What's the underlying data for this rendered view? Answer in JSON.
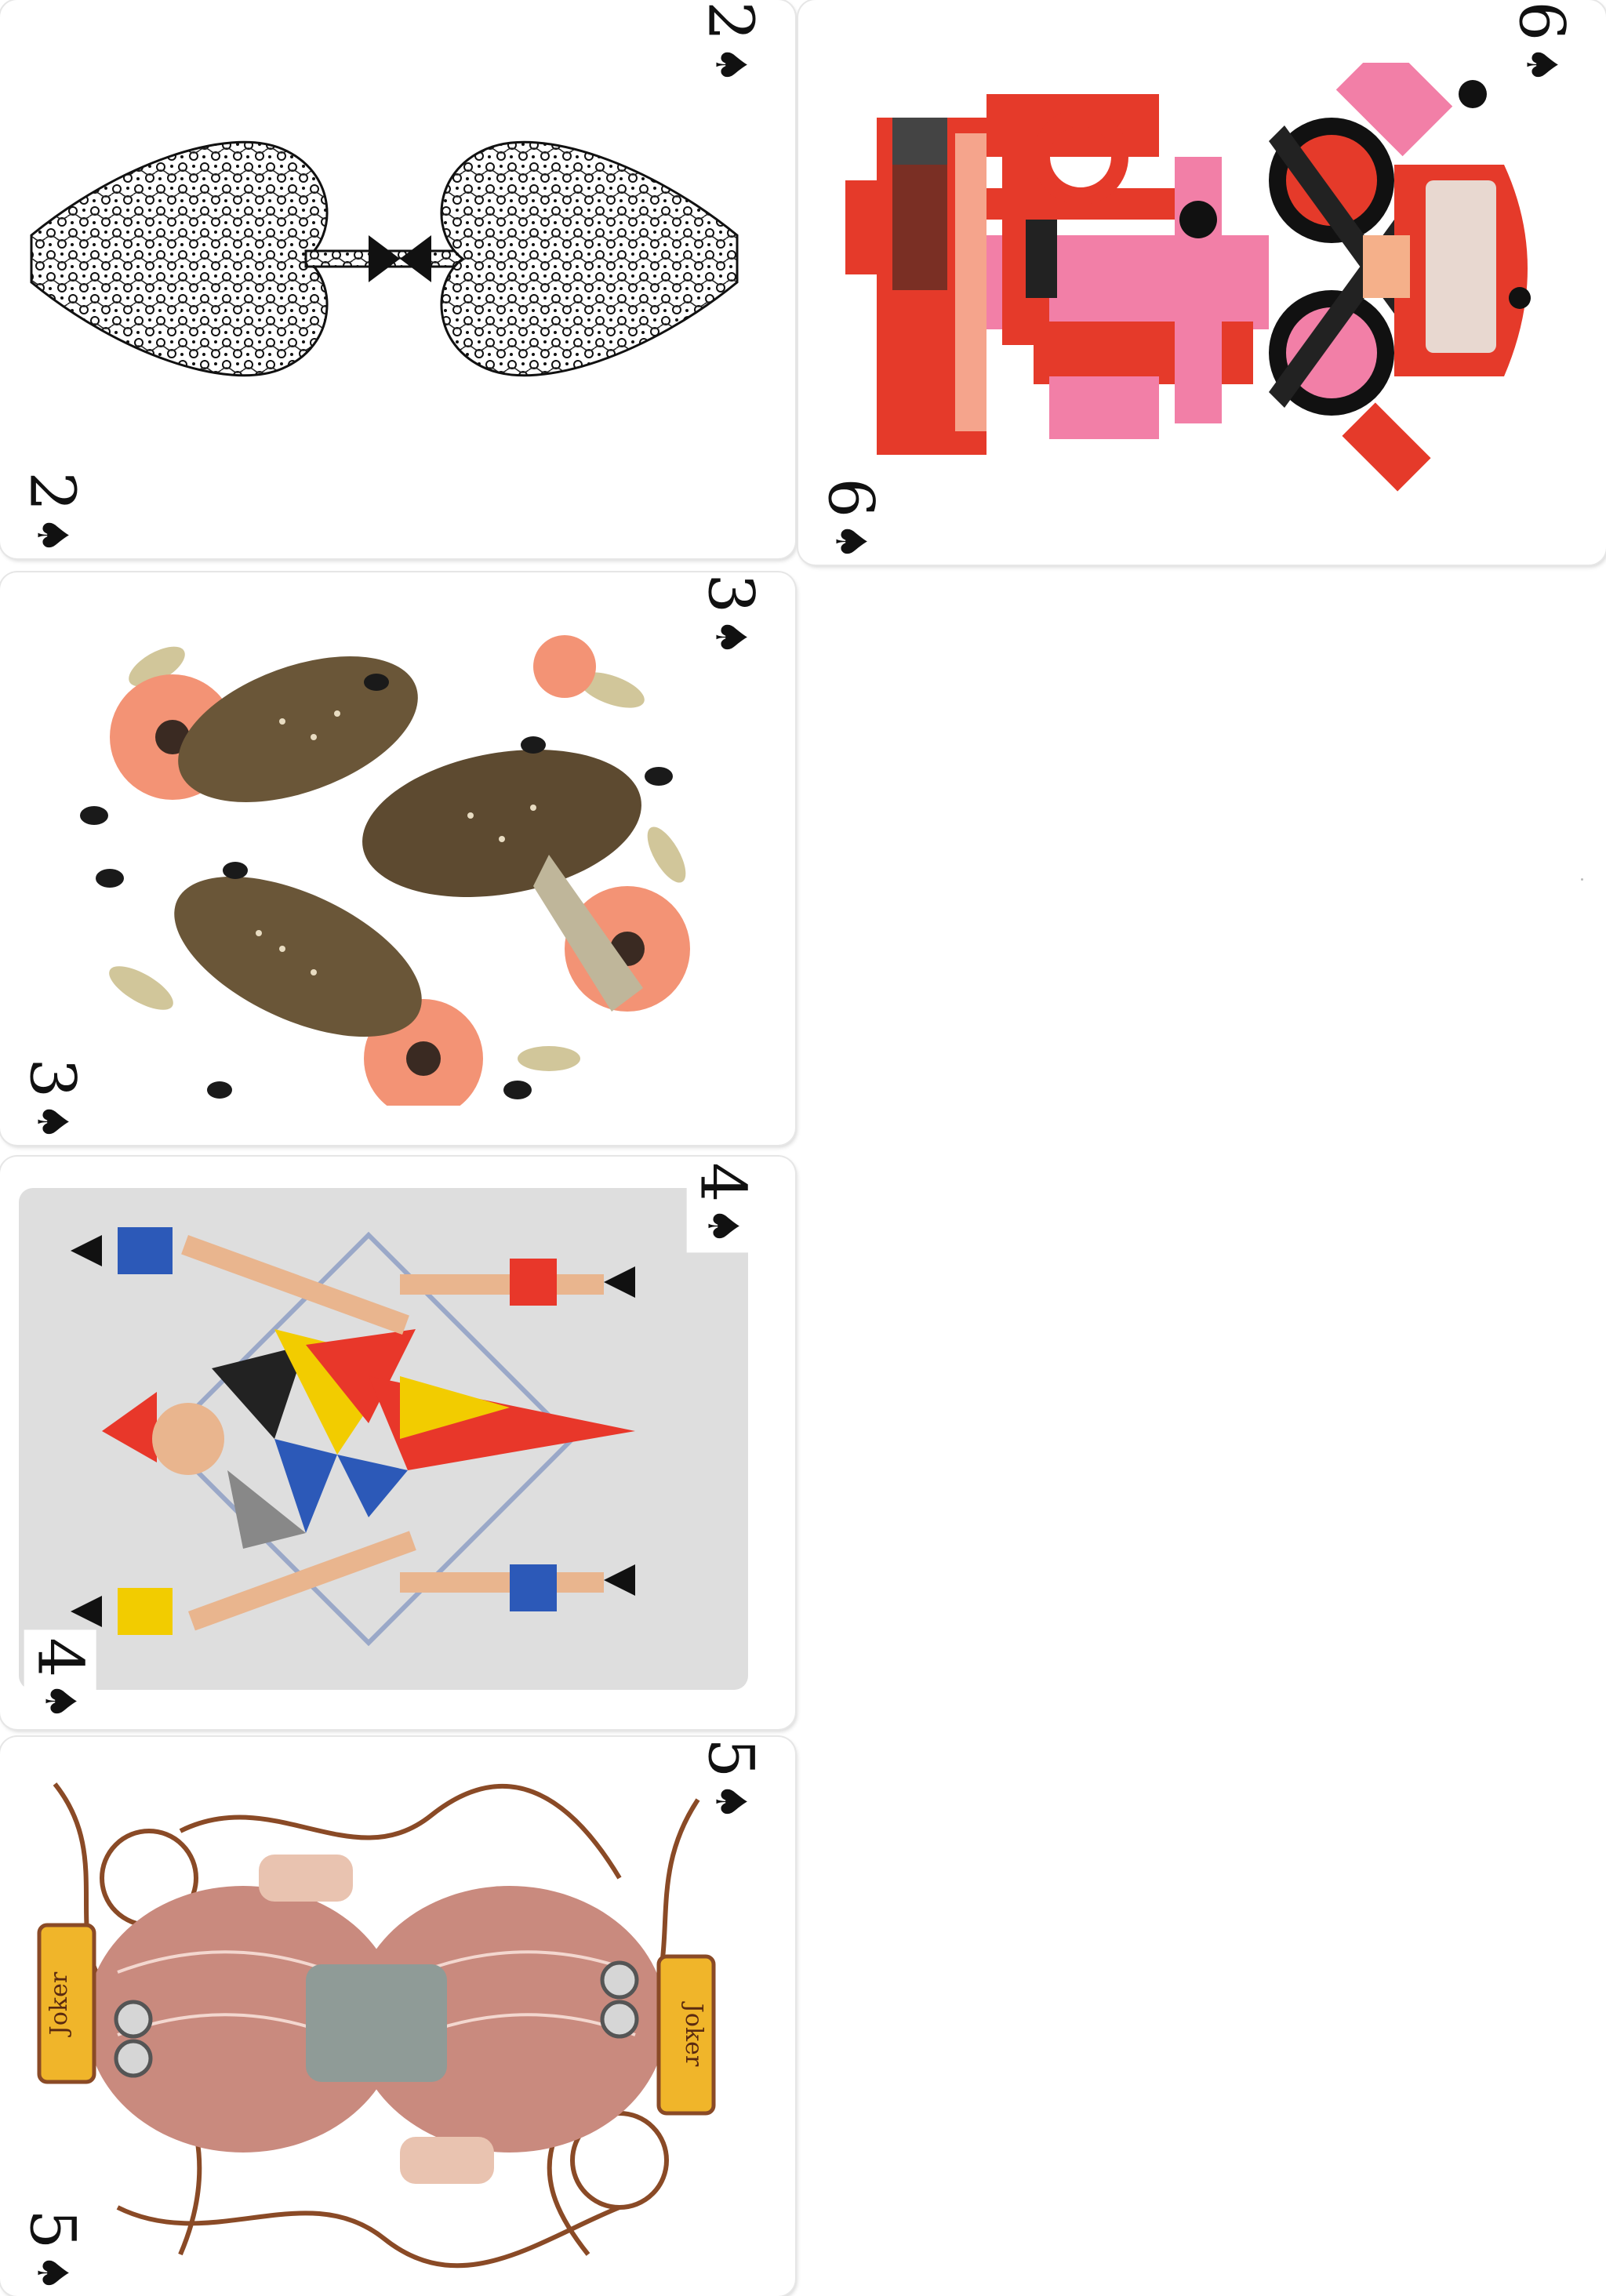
{
  "cards": [
    {
      "rank": "2",
      "suit": "♠"
    },
    {
      "rank": "6",
      "suit": "♠"
    },
    {
      "rank": "3",
      "suit": "♠"
    },
    {
      "rank": "4",
      "suit": "♠"
    },
    {
      "rank": "5",
      "suit": "♠"
    }
  ],
  "card5_banner_text": "Joker"
}
